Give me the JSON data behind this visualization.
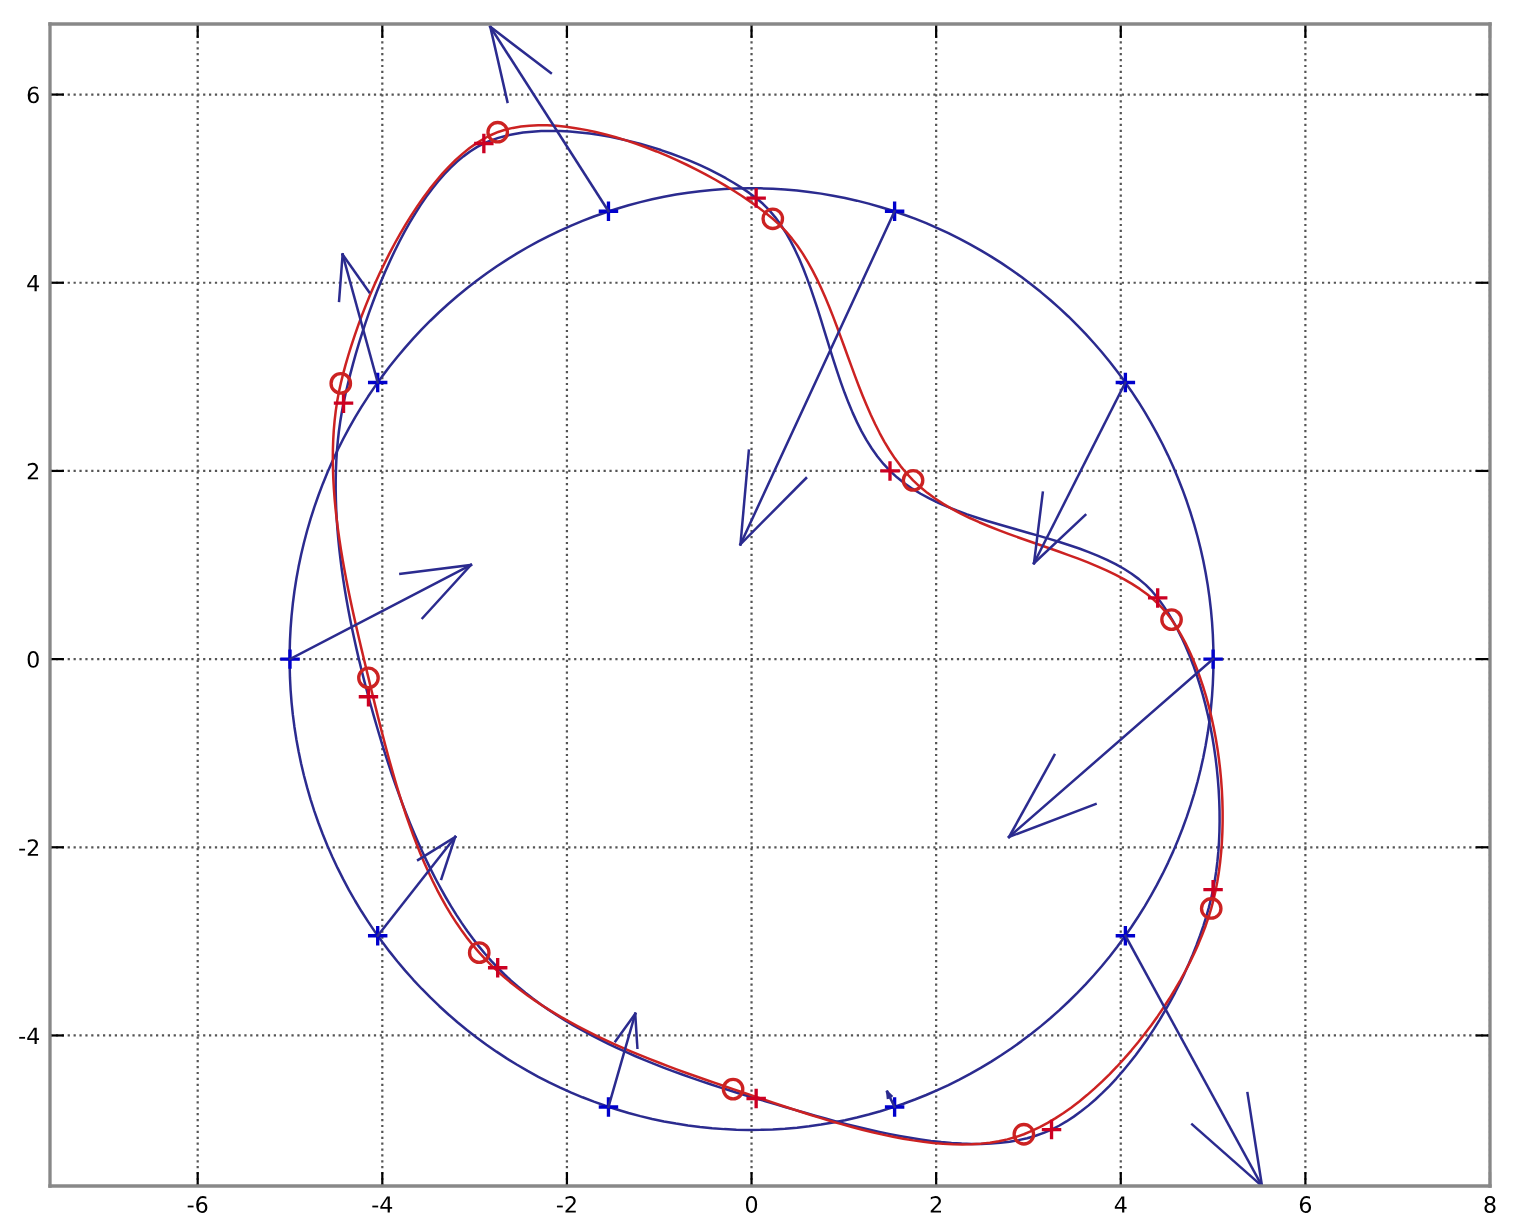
{
  "chart_data": {
    "type": "line",
    "xlim": [
      -7.6,
      8
    ],
    "ylim": [
      -5.6,
      6.75
    ],
    "xticks": [
      -6,
      -4,
      -2,
      0,
      2,
      4,
      6,
      8
    ],
    "yticks": [
      -4,
      -2,
      0,
      2,
      4,
      6
    ],
    "grid": true,
    "line_style": "solid",
    "series": [
      {
        "type": "scatter",
        "marker": "cross",
        "color": "#0000cc",
        "x": [
          5,
          4.05,
          1.55,
          -1.55,
          -4.05,
          -5,
          -4.05,
          -1.55,
          1.55,
          4.05
        ],
        "values": [
          0,
          2.94,
          4.76,
          4.76,
          2.94,
          0,
          -2.94,
          -4.76,
          -4.76,
          -2.94
        ]
      },
      {
        "type": "scatter",
        "marker": "cross",
        "color": "#cc0022",
        "x": [
          -2.9,
          0.05,
          1.5,
          4.4,
          5.0,
          3.25,
          0.05,
          -2.75,
          -4.15,
          -4.42
        ],
        "values": [
          5.48,
          4.9,
          2.0,
          0.65,
          -2.45,
          -5.0,
          -4.67,
          -3.28,
          -0.4,
          2.72
        ]
      },
      {
        "type": "scatter",
        "marker": "circle",
        "color": "#cc2222",
        "x": [
          -2.75,
          0.23,
          1.75,
          4.55,
          4.98,
          2.95,
          -0.2,
          -2.95,
          -4.15,
          -4.45
        ],
        "values": [
          5.6,
          4.68,
          1.9,
          0.42,
          -2.65,
          -5.05,
          -4.57,
          -3.12,
          -0.2,
          2.93
        ]
      },
      {
        "color": "#2b2b8f",
        "x": [
          5,
          2.79
        ],
        "values": [
          0,
          -1.89
        ]
      },
      {
        "color": "#2b2b8f",
        "x": [
          4.05,
          3.06
        ],
        "values": [
          2.94,
          1.02
        ]
      },
      {
        "color": "#2b2b8f",
        "x": [
          1.55,
          -0.12
        ],
        "values": [
          4.76,
          1.22
        ]
      },
      {
        "color": "#2b2b8f",
        "x": [
          -1.55,
          -2.83
        ],
        "values": [
          4.76,
          6.72
        ]
      },
      {
        "color": "#2b2b8f",
        "x": [
          -4.05,
          -4.43
        ],
        "values": [
          2.94,
          4.3
        ]
      },
      {
        "color": "#2b2b8f",
        "x": [
          -5,
          -3.04
        ],
        "values": [
          0,
          1.0
        ]
      },
      {
        "color": "#2b2b8f",
        "x": [
          -4.05,
          -3.21
        ],
        "values": [
          -2.94,
          -1.89
        ]
      },
      {
        "color": "#2b2b8f",
        "x": [
          -1.55,
          -1.26
        ],
        "values": [
          -4.76,
          -3.77
        ]
      },
      {
        "color": "#2b2b8f",
        "x": [
          1.55,
          1.47
        ],
        "values": [
          -4.76,
          -4.6
        ]
      },
      {
        "color": "#2b2b8f",
        "x": [
          4.05,
          5.53
        ],
        "values": [
          -2.94,
          -5.6
        ]
      }
    ]
  }
}
